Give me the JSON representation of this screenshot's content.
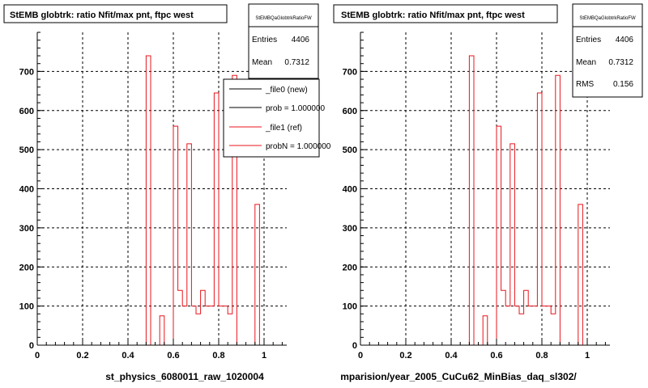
{
  "chart_data": [
    {
      "type": "bar",
      "title": "StEMB globtrk: ratio Nfit/max pnt, ftpc west",
      "xlabel": "st_physics_6080011_raw_1020004",
      "ylabel": "",
      "xlim": [
        0,
        1.1
      ],
      "ylim": [
        0,
        800
      ],
      "xticks": [
        "0",
        "0.2",
        "0.4",
        "0.6",
        "0.8",
        "1"
      ],
      "yticks": [
        "0",
        "100",
        "200",
        "300",
        "400",
        "500",
        "600",
        "700"
      ],
      "grid": true,
      "bin_width": 0.02,
      "series": [
        {
          "name": "_file1 (ref)",
          "color": "#e8141b",
          "bins": [
            {
              "x": 0.48,
              "y": 740
            },
            {
              "x": 0.54,
              "y": 75
            },
            {
              "x": 0.6,
              "y": 560
            },
            {
              "x": 0.62,
              "y": 140
            },
            {
              "x": 0.64,
              "y": 100
            },
            {
              "x": 0.66,
              "y": 515
            },
            {
              "x": 0.68,
              "y": 100
            },
            {
              "x": 0.7,
              "y": 80
            },
            {
              "x": 0.72,
              "y": 140
            },
            {
              "x": 0.74,
              "y": 100
            },
            {
              "x": 0.76,
              "y": 100
            },
            {
              "x": 0.78,
              "y": 645
            },
            {
              "x": 0.8,
              "y": 100
            },
            {
              "x": 0.82,
              "y": 100
            },
            {
              "x": 0.84,
              "y": 80
            },
            {
              "x": 0.86,
              "y": 690
            },
            {
              "x": 0.96,
              "y": 360
            }
          ]
        }
      ],
      "stats": {
        "name": "StEMBQaGlobtrkRatioFW",
        "rows": [
          {
            "label": "Entries",
            "value": "4406"
          },
          {
            "label": "Mean",
            "value": "0.7312"
          }
        ]
      },
      "legend": {
        "placement": "top-right",
        "entries": [
          {
            "label": "_file0 (new)",
            "color": "#000000"
          },
          {
            "label": "prob = 1.000000",
            "color": "#000000"
          },
          {
            "label": "_file1 (ref)",
            "color": "#e8141b"
          },
          {
            "label": "probN = 1.000000",
            "color": "#e8141b"
          }
        ]
      }
    },
    {
      "type": "bar",
      "title": "StEMB globtrk: ratio Nfit/max pnt, ftpc west",
      "xlabel": "mparision/year_2005_CuCu62_MinBias_daq_sl302/",
      "ylabel": "",
      "xlim": [
        0,
        1.1
      ],
      "ylim": [
        0,
        800
      ],
      "xticks": [
        "0",
        "0.2",
        "0.4",
        "0.6",
        "0.8",
        "1"
      ],
      "yticks": [
        "0",
        "100",
        "200",
        "300",
        "400",
        "500",
        "600",
        "700"
      ],
      "grid": true,
      "bin_width": 0.02,
      "series": [
        {
          "name": "",
          "color": "#e8141b",
          "bins": [
            {
              "x": 0.48,
              "y": 740
            },
            {
              "x": 0.54,
              "y": 75
            },
            {
              "x": 0.6,
              "y": 560
            },
            {
              "x": 0.62,
              "y": 140
            },
            {
              "x": 0.64,
              "y": 100
            },
            {
              "x": 0.66,
              "y": 515
            },
            {
              "x": 0.68,
              "y": 100
            },
            {
              "x": 0.7,
              "y": 80
            },
            {
              "x": 0.72,
              "y": 140
            },
            {
              "x": 0.74,
              "y": 100
            },
            {
              "x": 0.76,
              "y": 100
            },
            {
              "x": 0.78,
              "y": 645
            },
            {
              "x": 0.8,
              "y": 100
            },
            {
              "x": 0.82,
              "y": 100
            },
            {
              "x": 0.84,
              "y": 80
            },
            {
              "x": 0.86,
              "y": 690
            },
            {
              "x": 0.96,
              "y": 360
            }
          ]
        }
      ],
      "stats": {
        "name": "StEMBQaGlobtrkRatioFW",
        "rows": [
          {
            "label": "Entries",
            "value": "4406"
          },
          {
            "label": "Mean",
            "value": "0.7312"
          },
          {
            "label": "RMS",
            "value": "0.156"
          }
        ]
      }
    }
  ]
}
